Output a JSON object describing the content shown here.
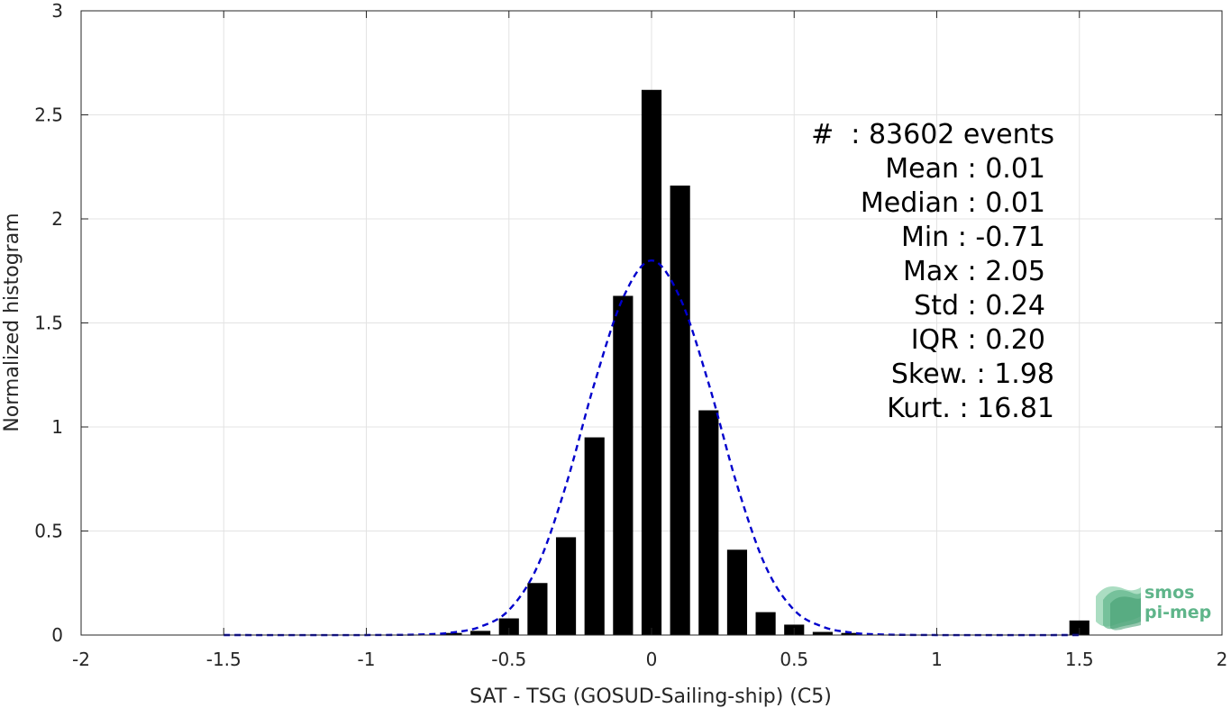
{
  "chart_data": {
    "type": "bar",
    "xlabel": "SAT - TSG (GOSUD-Sailing-ship) (C5)",
    "ylabel": "Normalized histogram",
    "xlim": [
      -2,
      2
    ],
    "ylim": [
      0,
      3
    ],
    "grid": true,
    "x_ticks": [
      -2,
      -1.5,
      -1,
      -0.5,
      0,
      0.5,
      1,
      1.5,
      2
    ],
    "y_ticks": [
      0,
      0.5,
      1,
      1.5,
      2,
      2.5,
      3
    ],
    "x_tick_labels": [
      "-2",
      "-1.5",
      "-1",
      "-0.5",
      "0",
      "0.5",
      "1",
      "1.5",
      "2"
    ],
    "y_tick_labels": [
      "0",
      "0.5",
      "1",
      "1.5",
      "2",
      "2.5",
      "3"
    ],
    "bar_width": 0.07,
    "bars": {
      "x": [
        -0.7,
        -0.6,
        -0.5,
        -0.4,
        -0.3,
        -0.2,
        -0.1,
        0.0,
        0.1,
        0.2,
        0.3,
        0.4,
        0.5,
        0.6,
        0.7,
        1.5
      ],
      "values": [
        0.01,
        0.02,
        0.08,
        0.25,
        0.47,
        0.95,
        1.63,
        2.62,
        2.16,
        1.08,
        0.41,
        0.11,
        0.05,
        0.015,
        0.01,
        0.07
      ],
      "color": "#000000"
    },
    "fit_curve": {
      "style": "dashed",
      "color": "#0000cc",
      "x": [
        -1.5,
        -1.0,
        -0.8,
        -0.7,
        -0.6,
        -0.5,
        -0.4,
        -0.3,
        -0.2,
        -0.1,
        0.0,
        0.1,
        0.2,
        0.3,
        0.4,
        0.5,
        0.6,
        0.7,
        0.8,
        1.0,
        1.5
      ],
      "values": [
        0.0,
        0.0,
        0.003,
        0.012,
        0.04,
        0.12,
        0.33,
        0.72,
        1.21,
        1.62,
        1.8,
        1.62,
        1.21,
        0.72,
        0.33,
        0.12,
        0.04,
        0.012,
        0.003,
        0.0,
        0.0
      ]
    },
    "annotations": [
      "#  : 83602 events",
      "Mean : 0.01",
      "Median : 0.01",
      "Min : -0.71",
      "Max : 2.05",
      "Std : 0.24",
      "IQR : 0.20",
      "Skew. : 1.98",
      "Kurt. : 16.81"
    ]
  },
  "logo": {
    "line1": "smos",
    "line2": "pi-mep",
    "color": "#5fb58a"
  }
}
